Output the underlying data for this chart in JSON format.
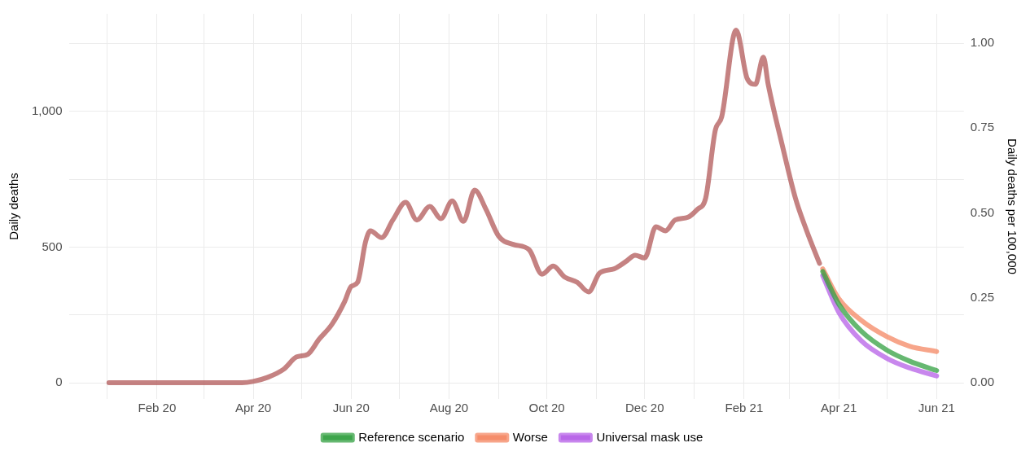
{
  "chart_data": {
    "type": "line",
    "ylabel": "Daily deaths",
    "y2label": "Daily deaths per 100,000",
    "series": [
      {
        "name": "Reference scenario",
        "color": "#2e9e3e",
        "x": [
          "2021-03-22",
          "2021-04-01",
          "2021-04-15",
          "2021-05-01",
          "2021-05-15",
          "2021-06-01"
        ],
        "values": [
          410,
          290,
          190,
          120,
          80,
          45
        ]
      },
      {
        "name": "Worse",
        "color": "#f4845f",
        "x": [
          "2021-03-22",
          "2021-04-01",
          "2021-04-15",
          "2021-05-01",
          "2021-05-15",
          "2021-06-01"
        ],
        "values": [
          420,
          310,
          230,
          170,
          135,
          115
        ]
      },
      {
        "name": "Universal mask use",
        "color": "#b45ce6",
        "x": [
          "2021-03-22",
          "2021-04-01",
          "2021-04-15",
          "2021-05-01",
          "2021-05-15",
          "2021-06-01"
        ],
        "values": [
          395,
          260,
          155,
          90,
          55,
          25
        ]
      },
      {
        "color": "#b05555",
        "x": [
          "2020-01-02",
          "2020-03-25",
          "2020-04-01",
          "2020-04-10",
          "2020-04-20",
          "2020-04-28",
          "2020-05-05",
          "2020-05-12",
          "2020-05-20",
          "2020-05-28",
          "2020-06-01",
          "2020-06-05",
          "2020-06-10",
          "2020-06-13",
          "2020-06-20",
          "2020-06-27",
          "2020-07-05",
          "2020-07-12",
          "2020-07-20",
          "2020-07-27",
          "2020-08-03",
          "2020-08-10",
          "2020-08-17",
          "2020-08-24",
          "2020-09-01",
          "2020-09-10",
          "2020-09-20",
          "2020-09-28",
          "2020-10-05",
          "2020-10-12",
          "2020-10-20",
          "2020-10-27",
          "2020-11-03",
          "2020-11-12",
          "2020-11-20",
          "2020-11-25",
          "2020-12-01",
          "2020-12-08",
          "2020-12-14",
          "2020-12-20",
          "2020-12-28",
          "2021-01-03",
          "2021-01-08",
          "2021-01-14",
          "2021-01-18",
          "2021-01-27",
          "2021-02-03",
          "2021-02-08",
          "2021-02-13",
          "2021-02-16",
          "2021-02-25",
          "2021-03-05",
          "2021-03-12",
          "2021-03-20"
        ],
        "values": [
          0,
          0,
          5,
          20,
          50,
          95,
          105,
          160,
          215,
          300,
          355,
          370,
          520,
          560,
          535,
          600,
          665,
          600,
          650,
          605,
          670,
          595,
          710,
          640,
          540,
          510,
          490,
          400,
          430,
          390,
          370,
          335,
          405,
          420,
          450,
          470,
          460,
          575,
          560,
          600,
          610,
          640,
          680,
          930,
          980,
          1300,
          1120,
          1100,
          1200,
          1100,
          870,
          680,
          560,
          440
        ]
      }
    ],
    "xlim": [
      "2019-12-08",
      "2021-06-18"
    ],
    "xticks": [
      {
        "value": "2020-01",
        "label": null
      },
      {
        "value": "2020-02",
        "label": "Feb 20"
      },
      {
        "value": "2020-03",
        "label": null
      },
      {
        "value": "2020-04",
        "label": "Apr 20"
      },
      {
        "value": "2020-05",
        "label": null
      },
      {
        "value": "2020-06",
        "label": "Jun 20"
      },
      {
        "value": "2020-07",
        "label": null
      },
      {
        "value": "2020-08",
        "label": "Aug 20"
      },
      {
        "value": "2020-09",
        "label": null
      },
      {
        "value": "2020-10",
        "label": "Oct 20"
      },
      {
        "value": "2020-11",
        "label": null
      },
      {
        "value": "2020-12",
        "label": "Dec 20"
      },
      {
        "value": "2021-01",
        "label": null
      },
      {
        "value": "2021-02",
        "label": "Feb 21"
      },
      {
        "value": "2021-03",
        "label": null
      },
      {
        "value": "2021-04",
        "label": "Apr 21"
      },
      {
        "value": "2021-05",
        "label": null
      },
      {
        "value": "2021-06",
        "label": "Jun 21"
      }
    ],
    "ylim": [
      -60,
      1360
    ],
    "yticks": [
      0,
      {
        "value": 250,
        "label": null
      },
      500,
      {
        "value": 750,
        "label": null
      },
      {
        "value": 1000,
        "label": "1,000"
      },
      {
        "value": 1250,
        "label": null
      }
    ],
    "y2lim": [
      -0.048,
      1.086
    ],
    "y2ticks": [
      {
        "value": 0,
        "label": "0.00"
      },
      {
        "value": 0.25,
        "label": "0.25"
      },
      {
        "value": 0.5,
        "label": "0.50"
      },
      {
        "value": 0.75,
        "label": "0.75"
      },
      {
        "value": 1,
        "label": "1.00"
      }
    ],
    "grid": true,
    "legend": "bottom"
  }
}
